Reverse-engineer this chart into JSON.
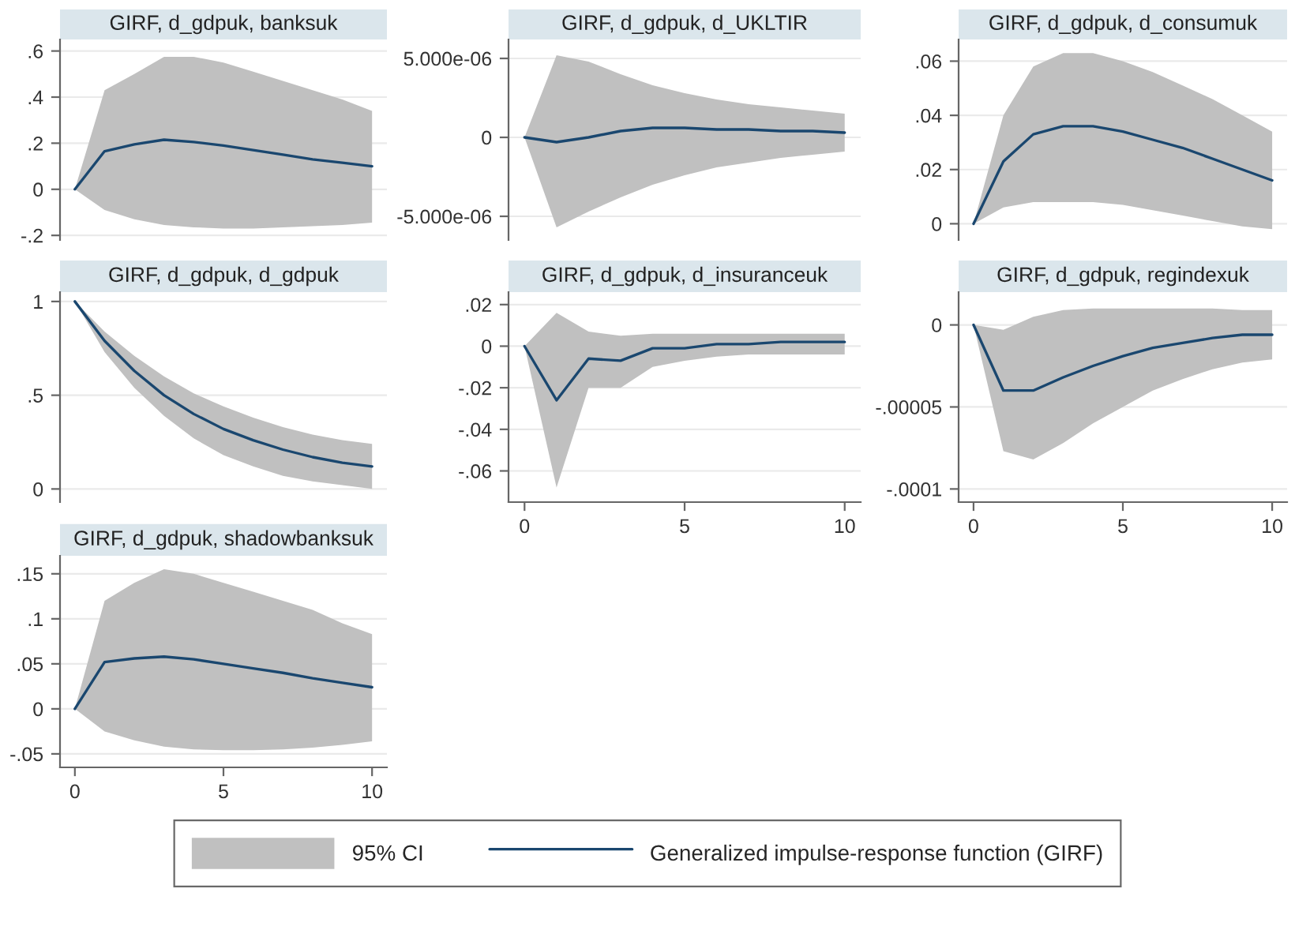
{
  "chart_data": [
    {
      "type": "line",
      "title": "GIRF, d_gdpuk, banksuk",
      "x": [
        0,
        1,
        2,
        3,
        4,
        5,
        6,
        7,
        8,
        9,
        10
      ],
      "xlim": [
        -0.5,
        10.5
      ],
      "xticks": [
        0,
        5,
        10
      ],
      "ylim": [
        -0.22,
        0.65
      ],
      "yticks": [
        {
          "value": -0.2,
          "label": "-.2"
        },
        0,
        {
          "value": 0.2,
          "label": ".2"
        },
        {
          "value": 0.4,
          "label": ".4"
        },
        {
          "value": 0.6,
          "label": ".6"
        }
      ],
      "grid": "y",
      "tick_labels": "y",
      "series": [
        {
          "color": "#1a476f",
          "values": [
            0,
            0.165,
            0.195,
            0.215,
            0.205,
            0.19,
            0.17,
            0.15,
            0.13,
            0.115,
            0.1
          ],
          "lower": [
            0,
            -0.09,
            -0.13,
            -0.155,
            -0.165,
            -0.17,
            -0.17,
            -0.165,
            -0.16,
            -0.155,
            -0.145
          ],
          "upper": [
            0,
            0.43,
            0.5,
            0.575,
            0.575,
            0.55,
            0.51,
            0.47,
            0.43,
            0.39,
            0.34
          ]
        }
      ]
    },
    {
      "type": "line",
      "title": "GIRF, d_gdpuk, d_UKLTIR",
      "x": [
        0,
        1,
        2,
        3,
        4,
        5,
        6,
        7,
        8,
        9,
        10
      ],
      "xlim": [
        -0.5,
        10.5
      ],
      "xticks": [
        0,
        5,
        10
      ],
      "ylim": [
        -6.5e-06,
        6.2e-06
      ],
      "yticks": [
        {
          "value": -5e-06,
          "label": "-5.000e-06"
        },
        0,
        {
          "value": 5e-06,
          "label": "5.000e-06"
        }
      ],
      "grid": "y",
      "tick_labels": "y",
      "series": [
        {
          "color": "#1a476f",
          "values": [
            0,
            -3e-07,
            0,
            4e-07,
            6e-07,
            6e-07,
            5e-07,
            5e-07,
            4e-07,
            4e-07,
            3e-07
          ],
          "lower": [
            0,
            -5.7e-06,
            -4.7e-06,
            -3.8e-06,
            -3e-06,
            -2.4e-06,
            -1.9e-06,
            -1.6e-06,
            -1.3e-06,
            -1.1e-06,
            -9e-07
          ],
          "upper": [
            0,
            5.2e-06,
            4.8e-06,
            4e-06,
            3.3e-06,
            2.8e-06,
            2.4e-06,
            2.1e-06,
            1.9e-06,
            1.7e-06,
            1.5e-06
          ]
        }
      ]
    },
    {
      "type": "line",
      "title": "GIRF, d_gdpuk, d_consumuk",
      "x": [
        0,
        1,
        2,
        3,
        4,
        5,
        6,
        7,
        8,
        9,
        10
      ],
      "xlim": [
        -0.5,
        10.5
      ],
      "xticks": [
        0,
        5,
        10
      ],
      "ylim": [
        -0.006,
        0.068
      ],
      "yticks": [
        0,
        {
          "value": 0.02,
          "label": ".02"
        },
        {
          "value": 0.04,
          "label": ".04"
        },
        {
          "value": 0.06,
          "label": ".06"
        }
      ],
      "grid": "y",
      "tick_labels": "y",
      "series": [
        {
          "color": "#1a476f",
          "values": [
            0,
            0.023,
            0.033,
            0.036,
            0.036,
            0.034,
            0.031,
            0.028,
            0.024,
            0.02,
            0.016
          ],
          "lower": [
            0,
            0.006,
            0.008,
            0.008,
            0.008,
            0.007,
            0.005,
            0.003,
            0.001,
            -0.001,
            -0.002
          ],
          "upper": [
            0,
            0.04,
            0.058,
            0.063,
            0.063,
            0.06,
            0.056,
            0.051,
            0.046,
            0.04,
            0.034
          ]
        }
      ]
    },
    {
      "type": "line",
      "title": "GIRF, d_gdpuk, d_gdpuk",
      "x": [
        0,
        1,
        2,
        3,
        4,
        5,
        6,
        7,
        8,
        9,
        10
      ],
      "xlim": [
        -0.5,
        10.5
      ],
      "xticks": [
        0,
        5,
        10
      ],
      "ylim": [
        -0.07,
        1.05
      ],
      "yticks": [
        0,
        {
          "value": 0.5,
          "label": ".5"
        },
        1
      ],
      "grid": "y",
      "tick_labels": "y",
      "series": [
        {
          "color": "#1a476f",
          "values": [
            1,
            0.79,
            0.63,
            0.5,
            0.4,
            0.32,
            0.26,
            0.21,
            0.17,
            0.14,
            0.12
          ],
          "lower": [
            1,
            0.73,
            0.54,
            0.39,
            0.27,
            0.18,
            0.12,
            0.07,
            0.04,
            0.02,
            0
          ],
          "upper": [
            1,
            0.84,
            0.71,
            0.6,
            0.51,
            0.44,
            0.38,
            0.33,
            0.29,
            0.26,
            0.24
          ]
        }
      ]
    },
    {
      "type": "line",
      "title": "GIRF, d_gdpuk, d_insuranceuk",
      "x": [
        0,
        1,
        2,
        3,
        4,
        5,
        6,
        7,
        8,
        9,
        10
      ],
      "xlim": [
        -0.5,
        10.5
      ],
      "xticks": [
        0,
        5,
        10
      ],
      "ylim": [
        -0.075,
        0.026
      ],
      "yticks": [
        {
          "value": -0.06,
          "label": "-.06"
        },
        {
          "value": -0.04,
          "label": "-.04"
        },
        {
          "value": -0.02,
          "label": "-.02"
        },
        0,
        {
          "value": 0.02,
          "label": ".02"
        }
      ],
      "grid": "y",
      "series": [
        {
          "color": "#1a476f",
          "values": [
            0,
            -0.026,
            -0.006,
            -0.007,
            -0.001,
            -0.001,
            0.001,
            0.001,
            0.002,
            0.002,
            0.002
          ],
          "lower": [
            0,
            -0.068,
            -0.02,
            -0.02,
            -0.01,
            -0.007,
            -0.005,
            -0.004,
            -0.004,
            -0.004,
            -0.004
          ],
          "upper": [
            0,
            0.016,
            0.007,
            0.005,
            0.006,
            0.006,
            0.006,
            0.006,
            0.006,
            0.006,
            0.006
          ]
        }
      ]
    },
    {
      "type": "line",
      "title": "GIRF, d_gdpuk, regindexuk",
      "x": [
        0,
        1,
        2,
        3,
        4,
        5,
        6,
        7,
        8,
        9,
        10
      ],
      "xlim": [
        -0.5,
        10.5
      ],
      "xticks": [
        0,
        5,
        10
      ],
      "ylim": [
        -0.000108,
        2e-05
      ],
      "yticks": [
        {
          "value": -0.0001,
          "label": "-.0001"
        },
        {
          "value": -5e-05,
          "label": "-.00005"
        },
        0
      ],
      "grid": "y",
      "series": [
        {
          "color": "#1a476f",
          "values": [
            0,
            -4e-05,
            -4e-05,
            -3.2e-05,
            -2.5e-05,
            -1.9e-05,
            -1.4e-05,
            -1.1e-05,
            -8e-06,
            -6e-06,
            -6e-06
          ],
          "lower": [
            0,
            -7.7e-05,
            -8.2e-05,
            -7.2e-05,
            -6e-05,
            -5e-05,
            -4e-05,
            -3.3e-05,
            -2.7e-05,
            -2.3e-05,
            -2.1e-05
          ],
          "upper": [
            0,
            -3e-06,
            5e-06,
            9e-06,
            1e-05,
            1e-05,
            1e-05,
            1e-05,
            1e-05,
            9e-06,
            9e-06
          ]
        }
      ]
    },
    {
      "type": "line",
      "title": "GIRF, d_gdpuk, shadowbanksuk",
      "x": [
        0,
        1,
        2,
        3,
        4,
        5,
        6,
        7,
        8,
        9,
        10
      ],
      "xlim": [
        -0.5,
        10.5
      ],
      "xticks": [
        0,
        5,
        10
      ],
      "ylim": [
        -0.065,
        0.17
      ],
      "yticks": [
        {
          "value": -0.05,
          "label": "-.05"
        },
        0,
        {
          "value": 0.05,
          "label": ".05"
        },
        {
          "value": 0.1,
          "label": ".1"
        },
        {
          "value": 0.15,
          "label": ".15"
        }
      ],
      "grid": "y",
      "legend": "bottom",
      "annotations": [
        "95% CI"
      ],
      "series": [
        {
          "name": "Generalized impulse-response function (GIRF)",
          "color": "#1a476f",
          "values": [
            0,
            0.052,
            0.056,
            0.058,
            0.055,
            0.05,
            0.045,
            0.04,
            0.034,
            0.029,
            0.024
          ],
          "lower": [
            0,
            -0.025,
            -0.035,
            -0.042,
            -0.045,
            -0.046,
            -0.046,
            -0.045,
            -0.043,
            -0.04,
            -0.036
          ],
          "upper": [
            0,
            0.12,
            0.14,
            0.155,
            0.15,
            0.14,
            0.13,
            0.12,
            0.11,
            0.095,
            0.083
          ]
        }
      ]
    }
  ]
}
